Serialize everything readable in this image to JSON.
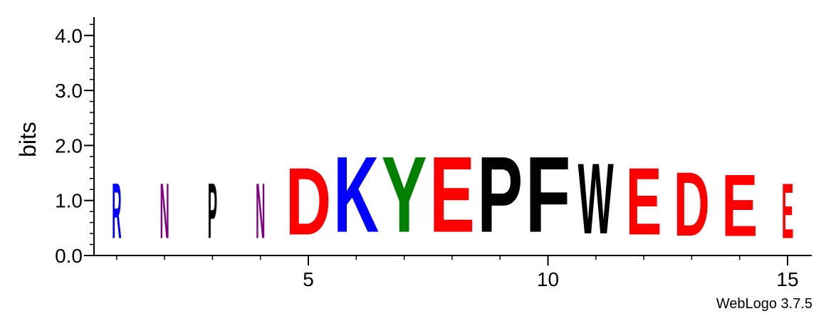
{
  "credit": "WebLogo 3.7.5",
  "chart_data": {
    "type": "sequence-logo",
    "title": "",
    "xlabel": "",
    "ylabel": "bits",
    "ylim": [
      0,
      4.3
    ],
    "xlim": [
      0.5,
      15.5
    ],
    "y_major_ticks": [
      {
        "value": 0.0,
        "label": "0.0"
      },
      {
        "value": 1.0,
        "label": "1.0"
      },
      {
        "value": 2.0,
        "label": "2.0"
      },
      {
        "value": 3.0,
        "label": "3.0"
      },
      {
        "value": 4.0,
        "label": "4.0"
      }
    ],
    "y_minor_step": 0.2,
    "x_major_ticks": [
      {
        "value": 5,
        "label": "5"
      },
      {
        "value": 10,
        "label": "10"
      },
      {
        "value": 15,
        "label": "15"
      }
    ],
    "x_minor_step": 1,
    "positions": [
      {
        "x": 1,
        "letter": "R",
        "bits": 1.6,
        "color": "#0000ff"
      },
      {
        "x": 2,
        "letter": "N",
        "bits": 1.6,
        "color": "#800080"
      },
      {
        "x": 3,
        "letter": "P",
        "bits": 1.6,
        "color": "#000000"
      },
      {
        "x": 4,
        "letter": "N",
        "bits": 1.6,
        "color": "#800080"
      },
      {
        "x": 5,
        "letter": "D",
        "bits": 1.95,
        "color": "#ff0000"
      },
      {
        "x": 6,
        "letter": "K",
        "bits": 2.2,
        "color": "#0000ff"
      },
      {
        "x": 7,
        "letter": "Y",
        "bits": 2.2,
        "color": "#008000"
      },
      {
        "x": 8,
        "letter": "E",
        "bits": 2.2,
        "color": "#ff0000"
      },
      {
        "x": 9,
        "letter": "P",
        "bits": 2.2,
        "color": "#000000"
      },
      {
        "x": 10,
        "letter": "F",
        "bits": 2.2,
        "color": "#000000"
      },
      {
        "x": 11,
        "letter": "W",
        "bits": 2.05,
        "color": "#000000"
      },
      {
        "x": 12,
        "letter": "E",
        "bits": 1.95,
        "color": "#ff0000"
      },
      {
        "x": 13,
        "letter": "D",
        "bits": 1.85,
        "color": "#ff0000"
      },
      {
        "x": 14,
        "letter": "E",
        "bits": 1.8,
        "color": "#ff0000"
      },
      {
        "x": 15,
        "letter": "E",
        "bits": 1.6,
        "color": "#ff0000"
      }
    ]
  }
}
